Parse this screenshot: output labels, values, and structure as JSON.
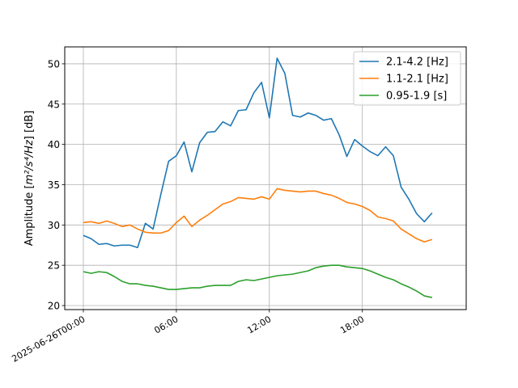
{
  "chart_data": {
    "type": "line",
    "title": "",
    "xlabel": "",
    "ylabel_prefix": "Amplitude [",
    "ylabel_unit": "m²/s⁴/Hz",
    "ylabel_suffix": "] [dB]",
    "ylim": [
      19.5,
      52.1
    ],
    "xlim": [
      "2025-06-25T22:48:00",
      "2025-06-27T00:42:00"
    ],
    "x_ticks": [
      {
        "value": "2025-06-26T00:00:00",
        "label": "2025-06-26T00:00"
      },
      {
        "value": "2025-06-26T06:00:00",
        "label": "06:00"
      },
      {
        "value": "2025-06-26T12:00:00",
        "label": "12:00"
      },
      {
        "value": "2025-06-26T18:00:00",
        "label": "18:00"
      }
    ],
    "y_ticks": [
      20,
      25,
      30,
      35,
      40,
      45,
      50
    ],
    "grid": true,
    "legend_position": "top-right",
    "x": [
      "2025-06-26T00:00:00",
      "2025-06-26T00:30:00",
      "2025-06-26T01:00:00",
      "2025-06-26T01:30:00",
      "2025-06-26T02:00:00",
      "2025-06-26T02:30:00",
      "2025-06-26T03:00:00",
      "2025-06-26T03:30:00",
      "2025-06-26T04:00:00",
      "2025-06-26T04:30:00",
      "2025-06-26T05:00:00",
      "2025-06-26T05:30:00",
      "2025-06-26T06:00:00",
      "2025-06-26T06:30:00",
      "2025-06-26T07:00:00",
      "2025-06-26T07:30:00",
      "2025-06-26T08:00:00",
      "2025-06-26T08:30:00",
      "2025-06-26T09:00:00",
      "2025-06-26T09:30:00",
      "2025-06-26T10:00:00",
      "2025-06-26T10:30:00",
      "2025-06-26T11:00:00",
      "2025-06-26T11:30:00",
      "2025-06-26T12:00:00",
      "2025-06-26T12:30:00",
      "2025-06-26T13:00:00",
      "2025-06-26T13:30:00",
      "2025-06-26T14:00:00",
      "2025-06-26T14:30:00",
      "2025-06-26T15:00:00",
      "2025-06-26T15:30:00",
      "2025-06-26T16:00:00",
      "2025-06-26T16:30:00",
      "2025-06-26T17:00:00",
      "2025-06-26T17:30:00",
      "2025-06-26T18:00:00",
      "2025-06-26T18:30:00",
      "2025-06-26T19:00:00",
      "2025-06-26T19:30:00",
      "2025-06-26T20:00:00",
      "2025-06-26T20:30:00",
      "2025-06-26T21:00:00",
      "2025-06-26T21:30:00",
      "2025-06-26T22:00:00",
      "2025-06-26T22:30:00",
      "2025-06-26T23:00:00"
    ],
    "series": [
      {
        "name": "2.1-4.2 [Hz]",
        "color": "#1f77b4",
        "values": [
          28.7,
          28.3,
          27.6,
          27.7,
          27.4,
          27.5,
          27.5,
          27.2,
          30.2,
          29.5,
          33.8,
          37.9,
          38.6,
          40.3,
          36.6,
          40.2,
          41.5,
          41.6,
          42.8,
          42.3,
          44.2,
          44.3,
          46.4,
          47.7,
          43.3,
          50.7,
          48.8,
          43.6,
          43.4,
          43.9,
          43.6,
          43.0,
          43.2,
          41.2,
          38.5,
          40.6,
          39.8,
          39.1,
          38.6,
          39.7,
          38.6,
          34.7,
          33.2,
          31.4,
          30.4,
          31.5,
          null
        ]
      },
      {
        "name": "1.1-2.1 [Hz]",
        "color": "#ff7f0e",
        "values": [
          30.3,
          30.4,
          30.2,
          30.5,
          30.2,
          29.8,
          30.0,
          29.5,
          29.1,
          29.0,
          29.0,
          29.3,
          30.3,
          31.1,
          29.8,
          30.6,
          31.2,
          31.9,
          32.6,
          32.9,
          33.4,
          33.3,
          33.2,
          33.5,
          33.2,
          34.5,
          34.3,
          34.2,
          34.1,
          34.2,
          34.2,
          33.9,
          33.7,
          33.3,
          32.8,
          32.6,
          32.3,
          31.8,
          31.0,
          30.8,
          30.5,
          29.5,
          28.9,
          28.3,
          27.9,
          28.2,
          null
        ]
      },
      {
        "name": "0.95-1.9 [s]",
        "color": "#2ca02c",
        "values": [
          24.2,
          24.0,
          24.2,
          24.1,
          23.6,
          23.0,
          22.7,
          22.7,
          22.5,
          22.4,
          22.2,
          22.0,
          22.0,
          22.1,
          22.2,
          22.2,
          22.4,
          22.5,
          22.5,
          22.5,
          23.0,
          23.2,
          23.1,
          23.3,
          23.5,
          23.7,
          23.8,
          23.9,
          24.1,
          24.3,
          24.7,
          24.9,
          25.0,
          25.0,
          24.8,
          24.7,
          24.6,
          24.3,
          23.9,
          23.5,
          23.2,
          22.7,
          22.3,
          21.8,
          21.2,
          21.0,
          null
        ]
      }
    ]
  }
}
